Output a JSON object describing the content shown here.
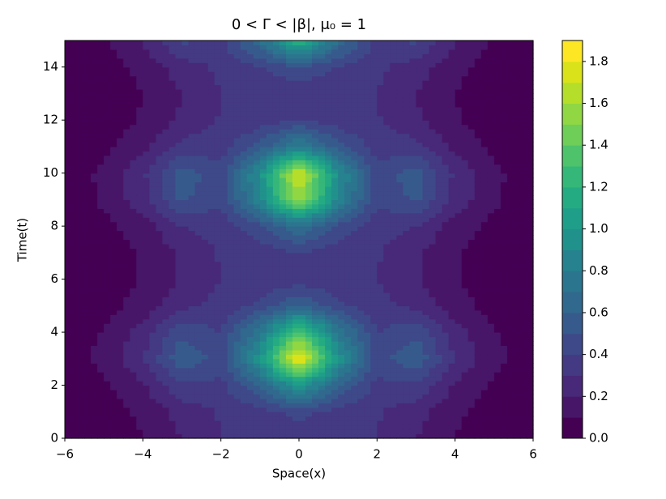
{
  "chart_data": {
    "type": "contourf",
    "title": "0 < Γ < |β|,  μ₀ = 1",
    "x_label": "Space(x)",
    "y_label": "Time(t)",
    "x": [
      -6,
      -5,
      -4,
      -3,
      -2,
      -1,
      0,
      1,
      2,
      3,
      4,
      5,
      6
    ],
    "y": [
      0,
      1,
      2,
      3,
      4,
      5,
      6,
      7,
      8,
      9,
      10,
      11,
      12,
      13,
      14,
      15
    ],
    "z": [
      [
        0.02,
        0.04,
        0.1,
        0.2,
        0.3,
        0.3,
        0.3,
        0.3,
        0.3,
        0.2,
        0.1,
        0.04,
        0.02
      ],
      [
        0.02,
        0.05,
        0.12,
        0.24,
        0.31,
        0.36,
        0.44,
        0.36,
        0.31,
        0.24,
        0.12,
        0.05,
        0.02
      ],
      [
        0.02,
        0.08,
        0.19,
        0.38,
        0.37,
        0.61,
        1.0,
        0.61,
        0.37,
        0.38,
        0.19,
        0.08,
        0.02
      ],
      [
        0.02,
        0.14,
        0.29,
        0.59,
        0.45,
        0.98,
        1.85,
        0.98,
        0.45,
        0.59,
        0.29,
        0.14,
        0.02
      ],
      [
        0.02,
        0.11,
        0.24,
        0.48,
        0.4,
        0.78,
        1.4,
        0.78,
        0.4,
        0.48,
        0.24,
        0.11,
        0.02
      ],
      [
        0.02,
        0.06,
        0.14,
        0.28,
        0.33,
        0.43,
        0.6,
        0.43,
        0.33,
        0.28,
        0.14,
        0.06,
        0.02
      ],
      [
        0.02,
        0.04,
        0.11,
        0.21,
        0.3,
        0.32,
        0.35,
        0.32,
        0.3,
        0.21,
        0.11,
        0.04,
        0.02
      ],
      [
        0.02,
        0.05,
        0.11,
        0.22,
        0.31,
        0.34,
        0.4,
        0.34,
        0.31,
        0.22,
        0.11,
        0.05,
        0.02
      ],
      [
        0.02,
        0.07,
        0.15,
        0.3,
        0.34,
        0.48,
        0.7,
        0.48,
        0.34,
        0.3,
        0.15,
        0.07,
        0.02
      ],
      [
        0.02,
        0.12,
        0.26,
        0.52,
        0.42,
        0.87,
        1.6,
        0.87,
        0.42,
        0.52,
        0.26,
        0.12,
        0.02
      ],
      [
        0.02,
        0.13,
        0.28,
        0.56,
        0.44,
        0.94,
        1.75,
        0.94,
        0.44,
        0.56,
        0.28,
        0.13,
        0.02
      ],
      [
        0.02,
        0.07,
        0.17,
        0.34,
        0.35,
        0.54,
        0.85,
        0.54,
        0.35,
        0.34,
        0.17,
        0.07,
        0.02
      ],
      [
        0.02,
        0.05,
        0.11,
        0.22,
        0.31,
        0.34,
        0.4,
        0.34,
        0.31,
        0.22,
        0.11,
        0.05,
        0.02
      ],
      [
        0.02,
        0.04,
        0.1,
        0.2,
        0.3,
        0.31,
        0.32,
        0.31,
        0.3,
        0.2,
        0.1,
        0.04,
        0.02
      ],
      [
        0.02,
        0.05,
        0.13,
        0.25,
        0.32,
        0.39,
        0.5,
        0.39,
        0.32,
        0.25,
        0.13,
        0.05,
        0.02
      ],
      [
        0.02,
        0.09,
        0.21,
        0.42,
        0.38,
        0.69,
        1.2,
        0.69,
        0.38,
        0.42,
        0.21,
        0.09,
        0.02
      ]
    ],
    "levels": [
      0,
      0.1,
      0.2,
      0.3,
      0.4,
      0.5,
      0.6,
      0.7,
      0.8,
      0.9,
      1.0,
      1.1,
      1.2,
      1.3,
      1.4,
      1.5,
      1.6,
      1.7,
      1.8,
      1.9
    ],
    "colors": [
      "#440154",
      "#481668",
      "#482878",
      "#443983",
      "#3e4989",
      "#375a8c",
      "#31688e",
      "#2b758e",
      "#26828e",
      "#21918c",
      "#1f9e89",
      "#25ab82",
      "#35b779",
      "#4ec36b",
      "#6ece58",
      "#90d743",
      "#b5de2b",
      "#dae319",
      "#fde725"
    ],
    "xlim": [
      -6,
      6
    ],
    "xticks": [
      {
        "value": -6,
        "label": "−6"
      },
      {
        "value": -4,
        "label": "−4"
      },
      {
        "value": -2,
        "label": "−2"
      },
      0,
      2,
      4,
      6
    ],
    "ylim": [
      0,
      15
    ],
    "yticks": [
      0,
      2,
      4,
      6,
      8,
      10,
      12,
      14
    ],
    "zlim": [
      0,
      1.9
    ],
    "zticks": [
      {
        "value": 0,
        "label": "0.0"
      },
      {
        "value": 0.2,
        "label": "0.2"
      },
      {
        "value": 0.4,
        "label": "0.4"
      },
      {
        "value": 0.6,
        "label": "0.6"
      },
      {
        "value": 0.8,
        "label": "0.8"
      },
      {
        "value": 1.0,
        "label": "1.0"
      },
      {
        "value": 1.2,
        "label": "1.2"
      },
      {
        "value": 1.4,
        "label": "1.4"
      },
      {
        "value": 1.6,
        "label": "1.6"
      },
      {
        "value": 1.8,
        "label": "1.8"
      }
    ]
  }
}
